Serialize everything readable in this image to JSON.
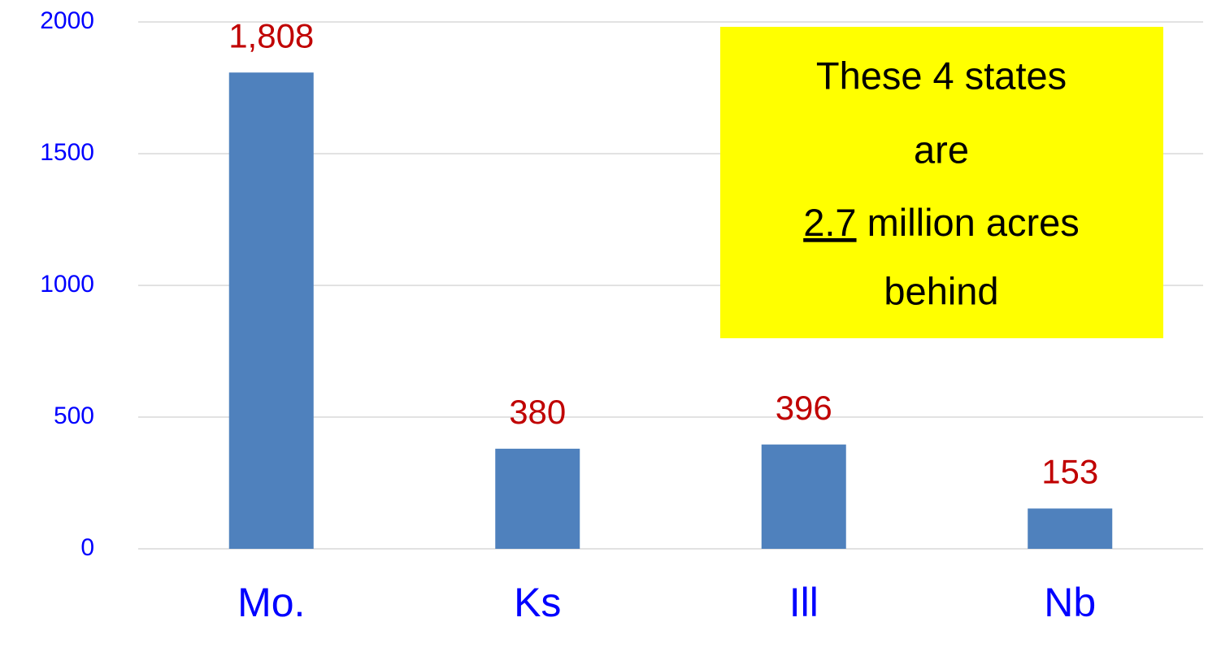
{
  "chart_data": {
    "type": "bar",
    "categories": [
      "Mo.",
      "Ks",
      "Ill",
      "Nb"
    ],
    "values": [
      1808,
      380,
      396,
      153
    ],
    "value_labels": [
      "1,808",
      "380",
      "396",
      "153"
    ],
    "color": "#4f81bd",
    "ylim": [
      0,
      2000
    ],
    "yticks": [
      0,
      500,
      1000,
      1500,
      2000
    ],
    "grid": true,
    "annotation": {
      "line1": "These 4 states",
      "line2": "are",
      "emphasis": "2.7",
      "line3": "million acres",
      "line4": "behind"
    }
  }
}
